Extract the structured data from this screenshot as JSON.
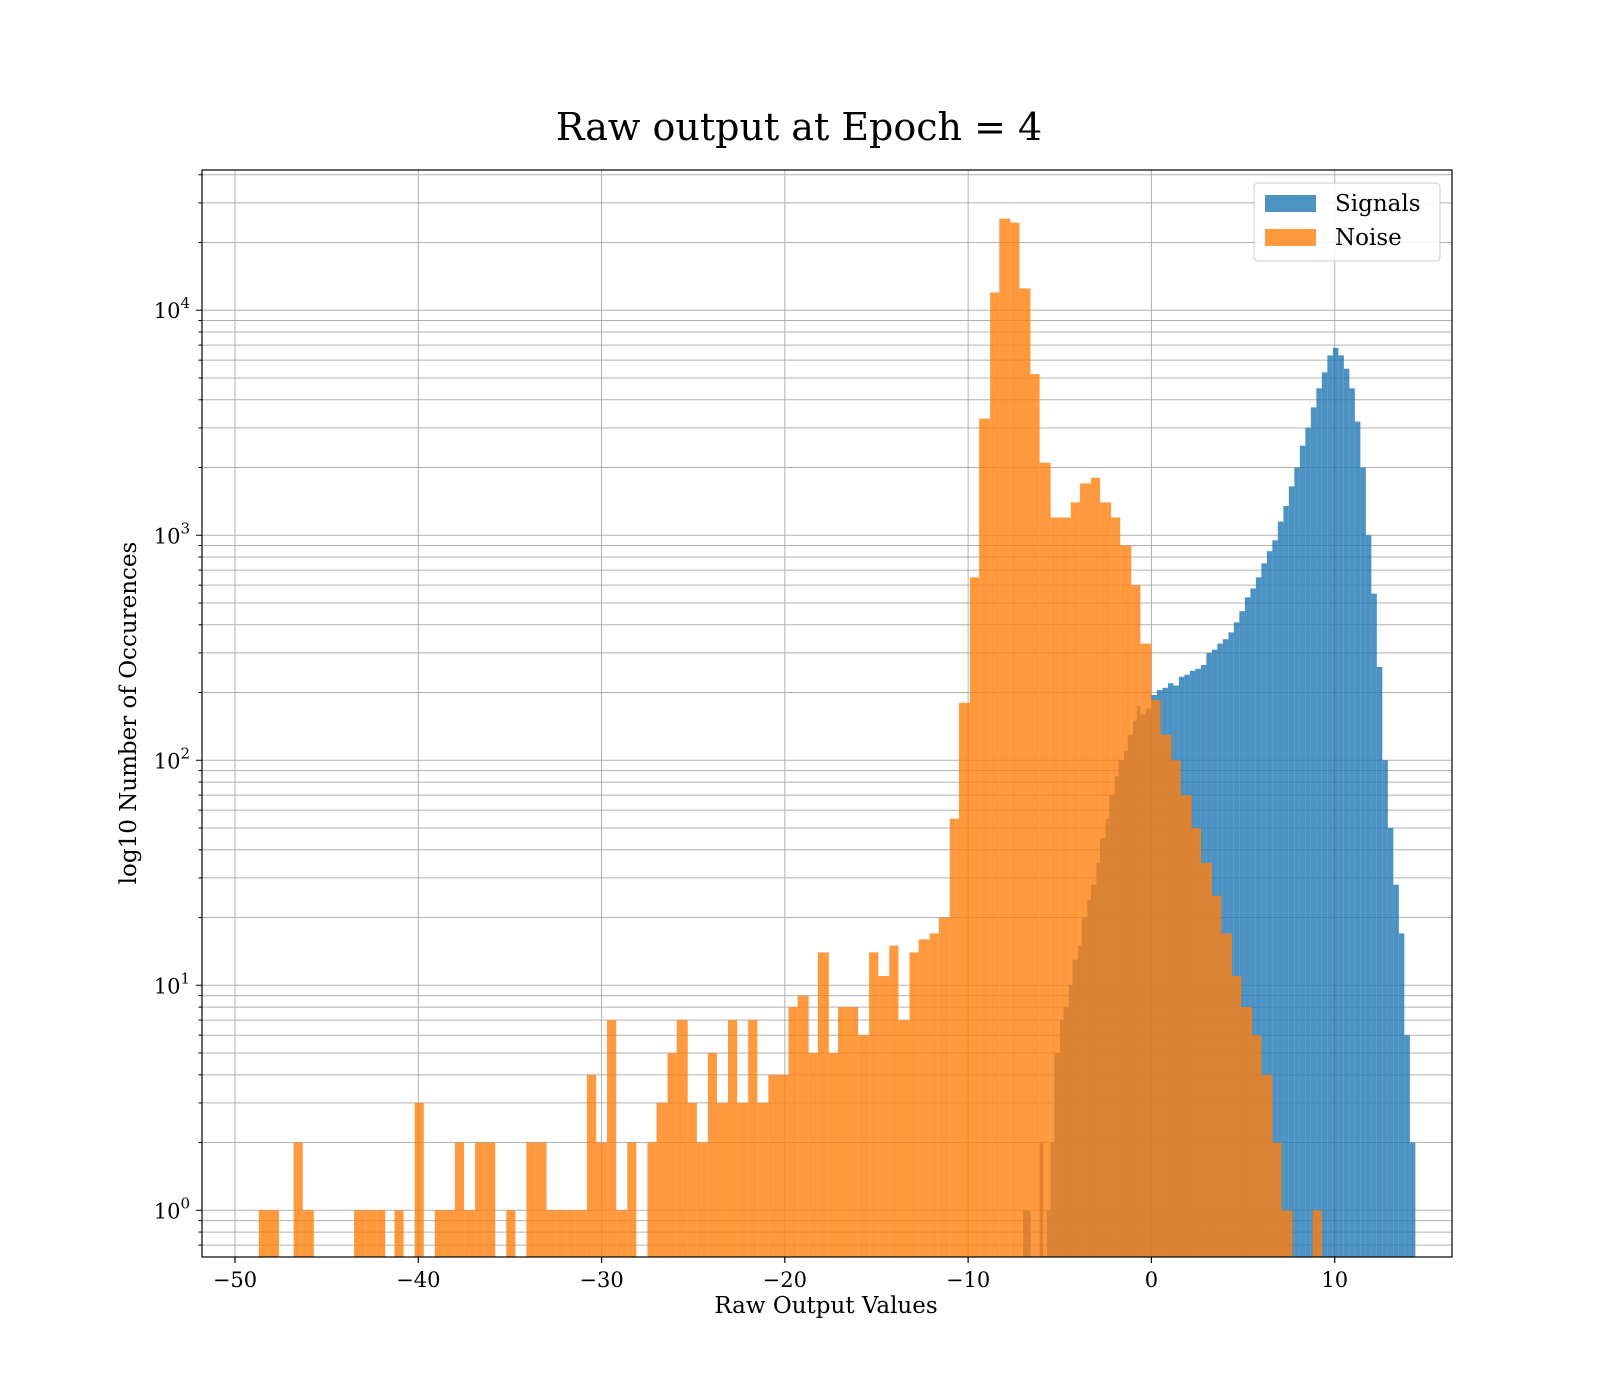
{
  "chart_data": {
    "type": "bar",
    "subtype": "histogram",
    "title": "Raw output at Epoch = 4",
    "xlabel": "Raw Output Values",
    "ylabel": "log10 Number of Occurences",
    "xlim": [
      -51.8,
      16.4
    ],
    "ylim": [
      0.62,
      42000
    ],
    "yscale": "log",
    "grid": true,
    "legend_position": "top-right",
    "x_ticks": [
      {
        "value": -50,
        "label": "−50"
      },
      {
        "value": -40,
        "label": "−40"
      },
      {
        "value": -30,
        "label": "−30"
      },
      {
        "value": -20,
        "label": "−20"
      },
      {
        "value": -10,
        "label": "−10"
      },
      {
        "value": 0,
        "label": "0"
      },
      {
        "value": 10,
        "label": "10"
      }
    ],
    "y_ticks": [
      {
        "value": 1,
        "base": "10",
        "exp": "0"
      },
      {
        "value": 10,
        "base": "10",
        "exp": "1"
      },
      {
        "value": 100,
        "base": "10",
        "exp": "2"
      },
      {
        "value": 1000,
        "base": "10",
        "exp": "3"
      },
      {
        "value": 10000,
        "base": "10",
        "exp": "4"
      }
    ],
    "series": [
      {
        "name": "Signals",
        "color": "#1f77b4",
        "opacity": 0.8,
        "bins": [
          [
            -7.0,
            -6.6,
            1
          ],
          [
            -6.1,
            -5.9,
            2
          ],
          [
            -5.7,
            -5.5,
            1
          ],
          [
            -5.5,
            -5.3,
            2
          ],
          [
            -5.3,
            -5.0,
            5
          ],
          [
            -5.0,
            -4.8,
            7
          ],
          [
            -4.8,
            -4.5,
            8
          ],
          [
            -4.5,
            -4.3,
            10
          ],
          [
            -4.3,
            -4.0,
            13
          ],
          [
            -4.0,
            -3.8,
            15
          ],
          [
            -3.8,
            -3.5,
            20
          ],
          [
            -3.5,
            -3.3,
            24
          ],
          [
            -3.3,
            -3.0,
            28
          ],
          [
            -3.0,
            -2.8,
            35
          ],
          [
            -2.8,
            -2.5,
            45
          ],
          [
            -2.5,
            -2.3,
            55
          ],
          [
            -2.3,
            -2.0,
            70
          ],
          [
            -2.0,
            -1.8,
            85
          ],
          [
            -1.8,
            -1.5,
            100
          ],
          [
            -1.5,
            -1.3,
            110
          ],
          [
            -1.3,
            -1.0,
            130
          ],
          [
            -1.0,
            -0.8,
            150
          ],
          [
            -0.8,
            -0.6,
            175
          ],
          [
            -0.6,
            -0.3,
            160
          ],
          [
            -0.3,
            0.0,
            170
          ],
          [
            0.0,
            0.3,
            195
          ],
          [
            0.3,
            0.6,
            205
          ],
          [
            0.6,
            0.9,
            210
          ],
          [
            0.9,
            1.2,
            220
          ],
          [
            1.2,
            1.5,
            215
          ],
          [
            1.5,
            1.8,
            235
          ],
          [
            1.8,
            2.1,
            240
          ],
          [
            2.1,
            2.4,
            250
          ],
          [
            2.4,
            2.7,
            255
          ],
          [
            2.7,
            3.0,
            265
          ],
          [
            3.0,
            3.3,
            300
          ],
          [
            3.3,
            3.6,
            310
          ],
          [
            3.6,
            3.9,
            330
          ],
          [
            3.9,
            4.2,
            345
          ],
          [
            4.2,
            4.5,
            370
          ],
          [
            4.5,
            4.8,
            410
          ],
          [
            4.8,
            5.1,
            460
          ],
          [
            5.1,
            5.4,
            530
          ],
          [
            5.4,
            5.7,
            580
          ],
          [
            5.7,
            6.0,
            650
          ],
          [
            6.0,
            6.3,
            750
          ],
          [
            6.3,
            6.6,
            850
          ],
          [
            6.6,
            6.9,
            950
          ],
          [
            6.9,
            7.2,
            1150
          ],
          [
            7.2,
            7.5,
            1350
          ],
          [
            7.5,
            7.8,
            1650
          ],
          [
            7.8,
            8.1,
            2000
          ],
          [
            8.1,
            8.4,
            2500
          ],
          [
            8.4,
            8.7,
            3000
          ],
          [
            8.7,
            9.0,
            3700
          ],
          [
            9.0,
            9.3,
            4500
          ],
          [
            9.3,
            9.6,
            5300
          ],
          [
            9.6,
            9.9,
            6300
          ],
          [
            9.9,
            10.2,
            6800
          ],
          [
            10.2,
            10.5,
            6300
          ],
          [
            10.5,
            10.8,
            5500
          ],
          [
            10.8,
            11.1,
            4500
          ],
          [
            11.1,
            11.4,
            3200
          ],
          [
            11.4,
            11.7,
            2000
          ],
          [
            11.7,
            12.0,
            1000
          ],
          [
            12.0,
            12.3,
            550
          ],
          [
            12.3,
            12.6,
            260
          ],
          [
            12.6,
            12.9,
            100
          ],
          [
            12.9,
            13.2,
            50
          ],
          [
            13.2,
            13.5,
            28
          ],
          [
            13.5,
            13.8,
            17
          ],
          [
            13.8,
            14.1,
            6
          ],
          [
            14.1,
            14.4,
            2
          ]
        ]
      },
      {
        "name": "Noise",
        "color": "#ff7f0e",
        "opacity": 0.8,
        "bins": [
          [
            -48.7,
            -48.2,
            1
          ],
          [
            -48.2,
            -47.6,
            1
          ],
          [
            -46.8,
            -46.3,
            2
          ],
          [
            -46.3,
            -45.7,
            1
          ],
          [
            -43.5,
            -42.9,
            1
          ],
          [
            -42.9,
            -42.3,
            1
          ],
          [
            -42.3,
            -41.8,
            1
          ],
          [
            -41.3,
            -40.8,
            1
          ],
          [
            -40.2,
            -39.7,
            3
          ],
          [
            -39.1,
            -38.6,
            1
          ],
          [
            -38.6,
            -38.0,
            1
          ],
          [
            -38.0,
            -37.5,
            2
          ],
          [
            -37.5,
            -36.9,
            1
          ],
          [
            -36.9,
            -36.4,
            2
          ],
          [
            -36.4,
            -35.8,
            2
          ],
          [
            -35.2,
            -34.7,
            1
          ],
          [
            -34.1,
            -33.6,
            2
          ],
          [
            -33.6,
            -33.0,
            2
          ],
          [
            -33.0,
            -32.5,
            1
          ],
          [
            -32.5,
            -31.9,
            1
          ],
          [
            -31.9,
            -31.4,
            1
          ],
          [
            -31.4,
            -30.8,
            1
          ],
          [
            -30.8,
            -30.3,
            4
          ],
          [
            -30.3,
            -29.7,
            2
          ],
          [
            -29.7,
            -29.2,
            7
          ],
          [
            -29.2,
            -28.6,
            1
          ],
          [
            -28.6,
            -28.1,
            2
          ],
          [
            -27.5,
            -27.0,
            2
          ],
          [
            -27.0,
            -26.4,
            3
          ],
          [
            -26.4,
            -25.9,
            5
          ],
          [
            -25.9,
            -25.3,
            7
          ],
          [
            -25.3,
            -24.8,
            3
          ],
          [
            -24.8,
            -24.2,
            2
          ],
          [
            -24.2,
            -23.7,
            5
          ],
          [
            -23.7,
            -23.1,
            3
          ],
          [
            -23.1,
            -22.6,
            7
          ],
          [
            -22.6,
            -22.0,
            3
          ],
          [
            -22.0,
            -21.5,
            7
          ],
          [
            -21.5,
            -20.9,
            3
          ],
          [
            -20.9,
            -20.4,
            4
          ],
          [
            -20.4,
            -19.8,
            4
          ],
          [
            -19.8,
            -19.3,
            8
          ],
          [
            -19.3,
            -18.7,
            9
          ],
          [
            -18.7,
            -18.2,
            5
          ],
          [
            -18.2,
            -17.6,
            14
          ],
          [
            -17.6,
            -17.1,
            5
          ],
          [
            -17.1,
            -16.5,
            8
          ],
          [
            -16.5,
            -16.0,
            8
          ],
          [
            -16.0,
            -15.4,
            6
          ],
          [
            -15.4,
            -14.9,
            14
          ],
          [
            -14.9,
            -14.3,
            11
          ],
          [
            -14.3,
            -13.8,
            15
          ],
          [
            -13.8,
            -13.2,
            7
          ],
          [
            -13.2,
            -12.7,
            14
          ],
          [
            -12.7,
            -12.1,
            16
          ],
          [
            -12.1,
            -11.6,
            17
          ],
          [
            -11.6,
            -11.0,
            20
          ],
          [
            -11.0,
            -10.5,
            55
          ],
          [
            -10.5,
            -9.9,
            180
          ],
          [
            -9.9,
            -9.4,
            650
          ],
          [
            -9.4,
            -8.8,
            3300
          ],
          [
            -8.8,
            -8.3,
            12000
          ],
          [
            -8.3,
            -7.7,
            25500
          ],
          [
            -7.7,
            -7.2,
            24500
          ],
          [
            -7.2,
            -6.6,
            12500
          ],
          [
            -6.6,
            -6.1,
            5200
          ],
          [
            -6.1,
            -5.5,
            2100
          ],
          [
            -5.5,
            -5.0,
            1200
          ],
          [
            -5.0,
            -4.4,
            1200
          ],
          [
            -4.4,
            -3.9,
            1400
          ],
          [
            -3.9,
            -3.3,
            1700
          ],
          [
            -3.3,
            -2.8,
            1800
          ],
          [
            -2.8,
            -2.2,
            1400
          ],
          [
            -2.2,
            -1.7,
            1200
          ],
          [
            -1.7,
            -1.1,
            900
          ],
          [
            -1.1,
            -0.6,
            600
          ],
          [
            -0.6,
            0.0,
            330
          ],
          [
            0.0,
            0.5,
            185
          ],
          [
            0.5,
            1.1,
            130
          ],
          [
            1.1,
            1.6,
            100
          ],
          [
            1.6,
            2.2,
            70
          ],
          [
            2.2,
            2.7,
            50
          ],
          [
            2.7,
            3.3,
            35
          ],
          [
            3.3,
            3.8,
            25
          ],
          [
            3.8,
            4.4,
            17
          ],
          [
            4.4,
            4.9,
            11
          ],
          [
            4.9,
            5.5,
            8
          ],
          [
            5.5,
            6.0,
            6
          ],
          [
            6.0,
            6.6,
            4
          ],
          [
            6.6,
            7.1,
            2
          ],
          [
            7.1,
            7.7,
            1
          ],
          [
            8.8,
            9.3,
            1
          ]
        ]
      }
    ]
  }
}
